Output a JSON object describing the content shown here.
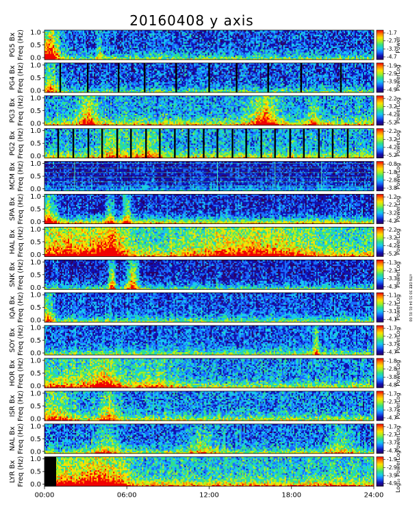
{
  "chart_data": {
    "type": "heatmap",
    "title": "20160408 y axis",
    "x_tick_labels": [
      "00:00",
      "06:00",
      "12:00",
      "18:00",
      "24:00"
    ],
    "x_range_hours": [
      0,
      24
    ],
    "colormap": [
      "#2a0060",
      "#1010b0",
      "#1a6cff",
      "#18c8f0",
      "#30e088",
      "#a8f020",
      "#ffe000",
      "#ff8000",
      "#f00000"
    ],
    "side_note": "nTN OEE 30 31 04 01 01 00",
    "panels": [
      {
        "station": "PG5",
        "ylabel": "PG5 Bx",
        "yunits": "Freq (Hz)",
        "yticks": [
          "1.0",
          "0.5",
          "0.0"
        ],
        "cbar_label": "Power",
        "cbar_ticks": [
          "-1.7",
          "-2.7",
          "-3.7",
          "-4.7"
        ],
        "base": 0.18,
        "lf": 0.35,
        "speckle": 0.35,
        "bright": [
          [
            0.3,
            0.8,
            0.8
          ],
          [
            4.0,
            0.2,
            0.3
          ]
        ],
        "gaps": [],
        "black": []
      },
      {
        "station": "PG4",
        "ylabel": "PG4 Bx",
        "yunits": "Freq (Hz)",
        "yticks": [
          "1.0",
          "0.5",
          "0.0"
        ],
        "cbar_label": "PowerLog",
        "cbar_ticks": [
          "-1.9",
          "-2.9",
          "-3.9",
          "-4.9"
        ],
        "base": 0.18,
        "lf": 0.3,
        "speckle": 0.35,
        "bright": [
          [
            0.4,
            0.6,
            0.5
          ]
        ],
        "gaps": [
          1.15,
          3.15,
          5.4,
          7.3,
          9.6,
          12.0,
          14.0,
          16.3,
          18.7,
          21.6
        ],
        "black": []
      },
      {
        "station": "PG3",
        "ylabel": "PG3 Bx",
        "yunits": "Freq (Hz)",
        "yticks": [
          "1.0",
          "0.5",
          "0.0"
        ],
        "cbar_label": "PowerLog",
        "cbar_ticks": [
          "-2.2",
          "-3.2",
          "-4.2",
          "-5.2"
        ],
        "base": 0.28,
        "lf": 0.4,
        "speckle": 0.35,
        "bright": [
          [
            3.2,
            0.8,
            0.4
          ],
          [
            16.0,
            1.0,
            0.5
          ],
          [
            19.6,
            0.4,
            0.3
          ]
        ],
        "gaps": [],
        "black": []
      },
      {
        "station": "PG2",
        "ylabel": "PG2 Bx",
        "yunits": "Freq (Hz)",
        "yticks": [
          "1.0",
          "0.5",
          "0.0"
        ],
        "cbar_label": "PowerLog",
        "cbar_ticks": [
          "-2.2",
          "-3.2",
          "-4.2",
          "-5.2"
        ],
        "base": 0.3,
        "lf": 0.35,
        "speckle": 0.35,
        "bright": [
          [
            5.0,
            1.0,
            0.3
          ],
          [
            7.5,
            1.0,
            0.3
          ]
        ],
        "gaps": [
          1.0,
          2.1,
          3.2,
          4.2,
          5.3,
          6.3,
          7.4,
          8.4,
          9.5,
          10.5,
          11.6,
          12.6,
          13.7,
          14.7,
          15.8,
          16.8,
          17.9,
          18.9,
          20.0,
          21.0,
          22.1
        ],
        "black": []
      },
      {
        "station": "MCM",
        "ylabel": "MCM Bx",
        "yunits": "Freq (Hz)",
        "yticks": [
          "1.0",
          "0.5",
          "0.0"
        ],
        "cbar_label": "PowerLog",
        "cbar_ticks": [
          "-0.8",
          "-1.8",
          "-2.8",
          "-3.8"
        ],
        "base": 0.12,
        "lf": 0.2,
        "speckle": 0.25,
        "bright": [],
        "gaps": [],
        "black": [],
        "lines": [
          0.93,
          0.78,
          0.62,
          0.47,
          0.31,
          0.16
        ],
        "vlines": [
          2.2,
          12.6,
          16.8,
          20.2
        ]
      },
      {
        "station": "SPA",
        "ylabel": "SPA Bx",
        "yunits": "Freq (Hz)",
        "yticks": [
          "1.0",
          "0.5",
          "0.0"
        ],
        "cbar_label": "PowerLog",
        "cbar_ticks": [
          "-1.2",
          "-2.2",
          "-3.2",
          "-4.2"
        ],
        "base": 0.14,
        "lf": 0.55,
        "speckle": 0.3,
        "bright": [
          [
            0.3,
            0.6,
            0.5
          ],
          [
            4.8,
            0.3,
            0.4
          ],
          [
            6.0,
            0.3,
            0.4
          ]
        ],
        "gaps": [],
        "black": []
      },
      {
        "station": "HAL",
        "ylabel": "HAL Bx",
        "yunits": "Freq (Hz)",
        "yticks": [
          "1.0",
          "0.5",
          "0.0"
        ],
        "cbar_label": "PowerLog",
        "cbar_ticks": [
          "-2.2",
          "-3.2",
          "-4.2",
          "-5.2"
        ],
        "base": 0.4,
        "lf": 0.35,
        "speckle": 0.35,
        "bright": [
          [
            1.8,
            3.0,
            0.35
          ],
          [
            4.8,
            1.0,
            0.45
          ],
          [
            15.0,
            4.0,
            0.35
          ]
        ],
        "gaps": [],
        "black": []
      },
      {
        "station": "SNK",
        "ylabel": "SNK Bx",
        "yunits": "Freq (Hz)",
        "yticks": [
          "1.0",
          "0.5",
          "0.0"
        ],
        "cbar_label": "PowerLog",
        "cbar_ticks": [
          "-1.3",
          "-2.3",
          "-3.3",
          "-4.3"
        ],
        "base": 0.12,
        "lf": 0.35,
        "speckle": 0.3,
        "bright": [
          [
            4.9,
            0.25,
            0.6
          ],
          [
            6.4,
            0.4,
            0.6
          ]
        ],
        "gaps": [],
        "black": []
      },
      {
        "station": "IQA",
        "ylabel": "IQA Bx",
        "yunits": "Freq (Hz)",
        "yticks": [
          "1.0",
          "0.5",
          "0.0"
        ],
        "cbar_label": "PowerLog",
        "cbar_ticks": [
          "-1.1",
          "-2.1",
          "-3.1",
          "-4.1"
        ],
        "base": 0.18,
        "lf": 0.35,
        "speckle": 0.3,
        "bright": [
          [
            0.2,
            0.6,
            0.4
          ]
        ],
        "gaps": [],
        "black": []
      },
      {
        "station": "SOY",
        "ylabel": "SOY Bx",
        "yunits": "Freq (Hz)",
        "yticks": [
          "1.0",
          "0.5",
          "0.0"
        ],
        "cbar_label": "PowerLog",
        "cbar_ticks": [
          "-1.7",
          "-2.7",
          "-3.7",
          "-4.7"
        ],
        "base": 0.2,
        "lf": 0.35,
        "speckle": 0.3,
        "bright": [
          [
            19.8,
            0.25,
            0.4
          ]
        ],
        "gaps": [],
        "black": []
      },
      {
        "station": "HOR",
        "ylabel": "HOR Bx",
        "yunits": "Freq (Hz)",
        "yticks": [
          "1.0",
          "0.5",
          "0.0"
        ],
        "cbar_label": "PowerLog",
        "cbar_ticks": [
          "-1.8",
          "-2.8",
          "-3.8",
          "-4.8"
        ],
        "base": 0.25,
        "lf": 0.35,
        "speckle": 0.35,
        "bright": [
          [
            2.0,
            3.0,
            0.3
          ],
          [
            4.5,
            1.0,
            0.35
          ],
          [
            8.0,
            2.0,
            0.25
          ]
        ],
        "gaps": [],
        "black": []
      },
      {
        "station": "ISR",
        "ylabel": "ISR Bx",
        "yunits": "Freq (Hz)",
        "yticks": [
          "1.0",
          "0.5",
          "0.0"
        ],
        "cbar_label": "PowerLog",
        "cbar_ticks": [
          "-1.7",
          "-2.7",
          "-3.7",
          "-4.7"
        ],
        "base": 0.25,
        "lf": 0.35,
        "speckle": 0.35,
        "bright": [
          [
            0.8,
            1.5,
            0.35
          ],
          [
            4.7,
            0.8,
            0.35
          ]
        ],
        "gaps": [],
        "black": []
      },
      {
        "station": "NAL",
        "ylabel": "NAL Bx",
        "yunits": "Freq (Hz)",
        "yticks": [
          "1.0",
          "0.5",
          "0.0"
        ],
        "cbar_label": "PowerLog",
        "cbar_ticks": [
          "-1.7",
          "-2.7",
          "-3.7",
          "-4.7"
        ],
        "base": 0.22,
        "lf": 0.35,
        "speckle": 0.35,
        "bright": [
          [
            4.5,
            1.0,
            0.3
          ],
          [
            11.5,
            1.0,
            0.25
          ],
          [
            21.5,
            1.0,
            0.25
          ]
        ],
        "gaps": [],
        "black": []
      },
      {
        "station": "LYR",
        "ylabel": "LYR Bx",
        "yunits": "Freq (Hz)",
        "yticks": [
          "1.0",
          "0.5",
          "0.0"
        ],
        "cbar_label": "Log₁₀ PowerLog",
        "cbar_ticks": [
          "-1.9",
          "-2.9",
          "-3.9",
          "-4.9"
        ],
        "base": 0.35,
        "lf": 0.45,
        "speckle": 0.35,
        "bright": [
          [
            1.5,
            3.0,
            0.35
          ],
          [
            4.5,
            1.5,
            0.35
          ]
        ],
        "gaps": [],
        "black": [
          [
            0.0,
            0.85
          ]
        ]
      }
    ]
  }
}
